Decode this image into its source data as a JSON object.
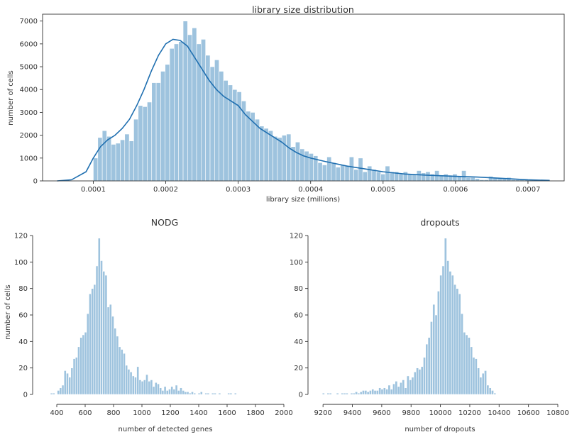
{
  "chart_data": [
    {
      "id": "library",
      "type": "bar",
      "title": "library size distribution",
      "xlabel": "library size (millions)",
      "ylabel": "number of cells",
      "xlim": [
        3e-05,
        0.00075
      ],
      "ylim": [
        0,
        7300
      ],
      "xticks": [
        0.0001,
        0.0002,
        0.0003,
        0.0004,
        0.0005,
        0.0006,
        0.0007
      ],
      "xtick_labels": [
        "0.0001",
        "0.0002",
        "0.0003",
        "0.0004",
        "0.0005",
        "0.0006",
        "0.0007"
      ],
      "yticks": [
        0,
        1000,
        2000,
        3000,
        4000,
        5000,
        6000,
        7000
      ],
      "ytick_labels": [
        "0",
        "1000",
        "2000",
        "3000",
        "4000",
        "5000",
        "6000",
        "7000"
      ],
      "bin_start": 0.0001,
      "bin_width": 6.2e-06,
      "values": [
        1000,
        1900,
        2200,
        1950,
        1600,
        1650,
        1800,
        2050,
        1750,
        2700,
        3300,
        3250,
        3450,
        4300,
        4300,
        4800,
        5100,
        5800,
        6000,
        6100,
        7000,
        6400,
        6700,
        6000,
        6200,
        5500,
        5000,
        5300,
        4800,
        4400,
        4200,
        4000,
        3900,
        3500,
        3050,
        3000,
        2700,
        2400,
        2300,
        2200,
        1950,
        1900,
        2000,
        2050,
        1500,
        1700,
        1400,
        1300,
        1200,
        1100,
        800,
        700,
        1050,
        800,
        600,
        700,
        650,
        1050,
        500,
        1000,
        400,
        650,
        500,
        400,
        300,
        650,
        400,
        400,
        300,
        400,
        300,
        300,
        450,
        350,
        400,
        300,
        450,
        250,
        300,
        250,
        300,
        200,
        450,
        150,
        150,
        100,
        50,
        50,
        200,
        150,
        100,
        100,
        150,
        50,
        50,
        50,
        50,
        50,
        50,
        50
      ],
      "kde_x": [
        5e-05,
        7e-05,
        9e-05,
        0.0001,
        0.00011,
        0.00012,
        0.00013,
        0.00014,
        0.00015,
        0.00016,
        0.00017,
        0.00018,
        0.00019,
        0.0002,
        0.00021,
        0.00022,
        0.00023,
        0.00024,
        0.00025,
        0.00026,
        0.00027,
        0.00028,
        0.00029,
        0.0003,
        0.00031,
        0.00032,
        0.00033,
        0.00034,
        0.00035,
        0.00036,
        0.00037,
        0.00038,
        0.00039,
        0.0004,
        0.00042,
        0.00045,
        0.00048,
        0.0005,
        0.00053,
        0.00056,
        0.0006,
        0.00063,
        0.00066,
        0.0007,
        0.00073
      ],
      "kde_y": [
        0,
        50,
        400,
        1000,
        1500,
        1800,
        2000,
        2300,
        2700,
        3300,
        4000,
        4800,
        5500,
        6000,
        6200,
        6150,
        5900,
        5400,
        4900,
        4400,
        4000,
        3700,
        3500,
        3300,
        2900,
        2600,
        2300,
        2100,
        1900,
        1700,
        1450,
        1250,
        1100,
        1000,
        850,
        650,
        500,
        400,
        300,
        250,
        200,
        170,
        120,
        50,
        20
      ]
    },
    {
      "id": "nodg",
      "type": "bar",
      "title": "NODG",
      "xlabel": "number of detected genes",
      "ylabel": "number of cells",
      "xlim": [
        330,
        1980
      ],
      "ylim": [
        0,
        120
      ],
      "xticks": [
        400,
        600,
        800,
        1000,
        1200,
        1400,
        1600,
        1800,
        2000
      ],
      "xtick_labels": [
        "400",
        "600",
        "800",
        "1000",
        "1200",
        "1400",
        "1600",
        "1800",
        "2000"
      ],
      "yticks": [
        0,
        20,
        40,
        60,
        80,
        100,
        120
      ],
      "ytick_labels": [
        "0",
        "20",
        "40",
        "60",
        "80",
        "100",
        "120"
      ],
      "bin_start": 355,
      "bin_width": 16,
      "values": [
        1,
        1,
        0,
        3,
        5,
        7,
        18,
        16,
        13,
        20,
        27,
        28,
        36,
        43,
        45,
        47,
        61,
        76,
        80,
        83,
        97,
        118,
        101,
        93,
        90,
        66,
        68,
        59,
        50,
        44,
        36,
        34,
        31,
        22,
        19,
        17,
        14,
        13,
        21,
        11,
        10,
        11,
        15,
        10,
        11,
        6,
        9,
        8,
        5,
        3,
        6,
        3,
        4,
        6,
        4,
        7,
        3,
        5,
        3,
        2,
        2,
        1,
        2,
        1,
        0,
        1,
        2,
        0,
        1,
        1,
        0,
        1,
        1,
        0,
        1,
        0,
        0,
        0,
        1,
        1,
        0,
        1
      ]
    },
    {
      "id": "dropouts",
      "type": "bar",
      "title": "dropouts",
      "xlabel": "number of dropouts",
      "ylabel": "",
      "xlim": [
        9175,
        10800
      ],
      "ylim": [
        0,
        120
      ],
      "xticks": [
        9200,
        9400,
        9600,
        9800,
        10000,
        10200,
        10400,
        10600,
        10800
      ],
      "xtick_labels": [
        "9200",
        "9400",
        "9600",
        "9800",
        "10000",
        "10200",
        "10400",
        "10600",
        "10800"
      ],
      "yticks": [
        0,
        20,
        40,
        60,
        80,
        100,
        120
      ],
      "ytick_labels": [
        "0",
        "20",
        "40",
        "60",
        "80",
        "100",
        "120"
      ],
      "bin_start": 9195,
      "bin_width": 16,
      "values": [
        1,
        0,
        1,
        1,
        0,
        0,
        1,
        0,
        1,
        1,
        1,
        0,
        1,
        1,
        2,
        1,
        2,
        3,
        3,
        2,
        3,
        4,
        3,
        3,
        5,
        4,
        5,
        4,
        7,
        4,
        8,
        10,
        6,
        9,
        11,
        5,
        14,
        11,
        13,
        17,
        20,
        19,
        21,
        28,
        38,
        43,
        55,
        68,
        60,
        78,
        90,
        97,
        118,
        101,
        93,
        90,
        83,
        80,
        76,
        61,
        47,
        45,
        43,
        36,
        28,
        27,
        20,
        13,
        16,
        18,
        7,
        5,
        3,
        1
      ]
    }
  ]
}
